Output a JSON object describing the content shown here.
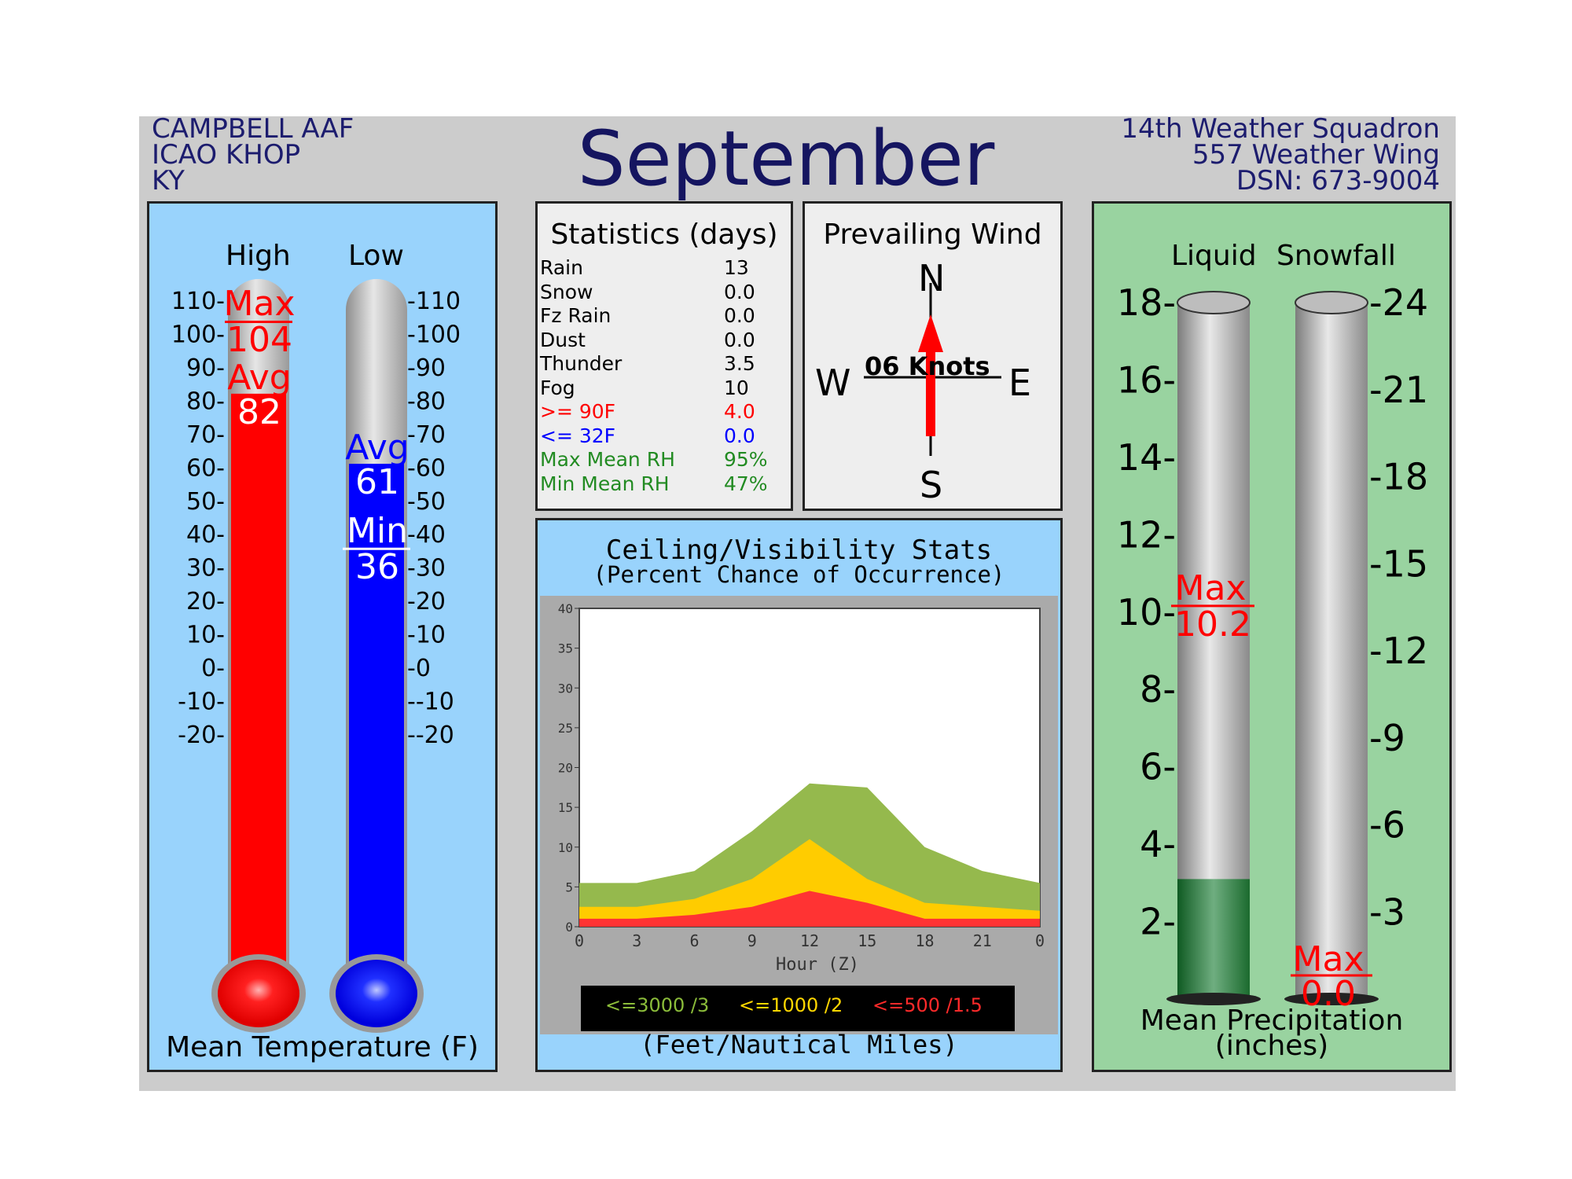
{
  "header": {
    "station_line1": "CAMPBELL AAF",
    "station_line2": "ICAO KHOP",
    "station_line3": "KY",
    "month": "September",
    "org_line1": "14th Weather Squadron",
    "org_line2": "557 Weather Wing",
    "org_line3": "DSN: 673-9004"
  },
  "temperature": {
    "high_label": "High",
    "low_label": "Low",
    "footer": "Mean Temperature (F)",
    "ticks": [
      110,
      100,
      90,
      80,
      70,
      60,
      50,
      40,
      30,
      20,
      10,
      0,
      -10,
      -20
    ],
    "high": {
      "max_label": "Max",
      "max": "104",
      "avg_label": "Avg",
      "avg": "82"
    },
    "low": {
      "avg_label": "Avg",
      "avg": "61",
      "min_label": "Min",
      "min": "36"
    },
    "colors": {
      "high": "#ff0000",
      "low": "#0000ff"
    }
  },
  "statistics": {
    "title": "Statistics (days)",
    "rows": [
      {
        "label": "Rain",
        "value": "13",
        "color": "#000000"
      },
      {
        "label": "Snow",
        "value": "0.0",
        "color": "#000000"
      },
      {
        "label": "Fz Rain",
        "value": "0.0",
        "color": "#000000"
      },
      {
        "label": "Dust",
        "value": "0.0",
        "color": "#000000"
      },
      {
        "label": "Thunder",
        "value": "3.5",
        "color": "#000000"
      },
      {
        "label": "Fog",
        "value": "10",
        "color": "#000000"
      },
      {
        "label": ">= 90F",
        "value": "4.0",
        "color": "#ff0000"
      },
      {
        "label": "<= 32F",
        "value": "0.0",
        "color": "#0000ff"
      },
      {
        "label": "Max Mean RH",
        "value": "95%",
        "color": "#228b22"
      },
      {
        "label": "Min Mean RH",
        "value": "47%",
        "color": "#228b22"
      }
    ]
  },
  "wind": {
    "title": "Prevailing Wind",
    "n": "N",
    "s": "S",
    "e": "E",
    "w": "W",
    "speed_label": "06 Knots",
    "direction": "N"
  },
  "ceiling_visibility": {
    "title": "Ceiling/Visibility Stats",
    "subtitle": "(Percent Chance of Occurrence)",
    "footer": "(Feet/Nautical Miles)",
    "legend": [
      {
        "label": "<=3000 /3",
        "color": "#8bbc3a"
      },
      {
        "label": "<=1000 /2",
        "color": "#ffd700"
      },
      {
        "label": "<=500 /1.5",
        "color": "#ff2a2a"
      }
    ]
  },
  "precipitation": {
    "liquid_label": "Liquid",
    "snow_label": "Snowfall",
    "footer_line1": "Mean Precipitation",
    "footer_line2": "(inches)",
    "liquid_max_label": "Max",
    "liquid_max": "10.2",
    "snow_max_label": "Max",
    "snow_max": "0.0"
  },
  "chart_data": [
    {
      "type": "bar",
      "title": "",
      "categories": [
        "High",
        "Low"
      ],
      "series": [
        {
          "name": "Max",
          "values": [
            104,
            null
          ]
        },
        {
          "name": "Avg",
          "values": [
            82,
            61
          ]
        },
        {
          "name": "Min",
          "values": [
            null,
            36
          ]
        }
      ],
      "ylim": [
        -20,
        110
      ],
      "xlabel": "",
      "ylabel": "Mean Temperature (F)"
    },
    {
      "type": "area",
      "title": "Ceiling/Visibility Stats",
      "xlabel": "Hour (Z)",
      "ylabel": "",
      "x": [
        0,
        3,
        6,
        9,
        12,
        15,
        18,
        21,
        0
      ],
      "ylim": [
        0,
        40
      ],
      "yticks": [
        0,
        5,
        10,
        15,
        20,
        25,
        30,
        35,
        40
      ],
      "series": [
        {
          "name": "<=3000 /3",
          "values": [
            5.5,
            5.5,
            7,
            12,
            18,
            17.5,
            10,
            7,
            5.5
          ]
        },
        {
          "name": "<=1000 /2",
          "values": [
            2.5,
            2.5,
            3.5,
            6,
            11,
            6,
            3,
            2.5,
            2
          ]
        },
        {
          "name": "<=500 /1.5",
          "values": [
            1,
            1,
            1.5,
            2.5,
            4.5,
            3,
            1,
            1,
            1
          ]
        }
      ]
    },
    {
      "type": "bar",
      "title": "",
      "categories": [
        "Liquid",
        "Snowfall"
      ],
      "series": [
        {
          "name": "Mean",
          "values": [
            3.1,
            0.0
          ]
        },
        {
          "name": "Max",
          "values": [
            10.2,
            0.0
          ]
        }
      ],
      "axes": {
        "liquid": {
          "ylim": [
            0,
            18
          ],
          "ticks": [
            2,
            4,
            6,
            8,
            10,
            12,
            14,
            16,
            18
          ]
        },
        "snow": {
          "ylim": [
            0,
            24
          ],
          "ticks": [
            3,
            6,
            9,
            12,
            15,
            18,
            21,
            24
          ]
        }
      },
      "ylabel": "Mean Precipitation (inches)"
    }
  ]
}
